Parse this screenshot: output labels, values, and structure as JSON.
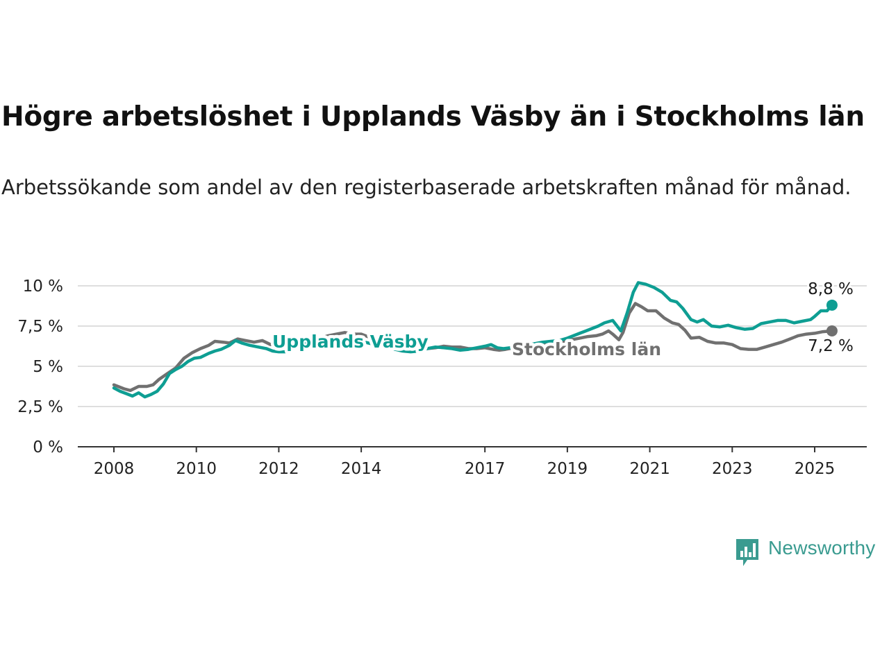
{
  "header": {
    "title": "Högre arbetslöshet i Upplands Väsby än i Stockholms län",
    "subtitle": "Arbetssökande som andel av den registerbaserade arbetskraften månad för månad."
  },
  "brand": {
    "name": "Newsworthy",
    "icon": "newsworthy-logo-icon",
    "color": "#3a9b90"
  },
  "chart_data": {
    "type": "line",
    "xlim": [
      2007.5,
      2026.3
    ],
    "ylim": [
      0,
      10
    ],
    "grid": true,
    "x_ticks": [
      2008,
      2010,
      2012,
      2014,
      2017,
      2019,
      2021,
      2023,
      2025
    ],
    "y_ticks": [
      {
        "value": 0,
        "label": "0 %"
      },
      {
        "value": 2.5,
        "label": "2,5 %"
      },
      {
        "value": 5,
        "label": "5 %"
      },
      {
        "value": 7.5,
        "label": "7,5 %"
      },
      {
        "value": 10,
        "label": "10 %"
      }
    ],
    "series": [
      {
        "name": "Stockholms län",
        "color": "#707070",
        "end_label": "7,2 %",
        "points": [
          [
            2008.0,
            3.85
          ],
          [
            2008.25,
            3.6
          ],
          [
            2008.4,
            3.5
          ],
          [
            2008.6,
            3.75
          ],
          [
            2008.8,
            3.75
          ],
          [
            2008.95,
            3.85
          ],
          [
            2009.1,
            4.2
          ],
          [
            2009.3,
            4.55
          ],
          [
            2009.5,
            4.9
          ],
          [
            2009.7,
            5.5
          ],
          [
            2009.9,
            5.85
          ],
          [
            2010.1,
            6.1
          ],
          [
            2010.3,
            6.3
          ],
          [
            2010.45,
            6.55
          ],
          [
            2010.65,
            6.5
          ],
          [
            2010.8,
            6.45
          ],
          [
            2011.0,
            6.7
          ],
          [
            2011.2,
            6.6
          ],
          [
            2011.4,
            6.5
          ],
          [
            2011.6,
            6.6
          ],
          [
            2011.8,
            6.35
          ],
          [
            2012.0,
            6.4
          ],
          [
            2012.15,
            6.45
          ],
          [
            2012.35,
            6.3
          ],
          [
            2012.6,
            6.45
          ],
          [
            2012.8,
            6.6
          ],
          [
            2013.0,
            6.75
          ],
          [
            2013.2,
            6.9
          ],
          [
            2013.4,
            7.0
          ],
          [
            2013.6,
            7.1
          ],
          [
            2013.8,
            7.0
          ],
          [
            2014.0,
            7.0
          ],
          [
            2014.2,
            6.8
          ],
          [
            2014.4,
            6.6
          ],
          [
            2014.6,
            6.45
          ],
          [
            2014.8,
            6.3
          ],
          [
            2015.0,
            6.2
          ],
          [
            2015.2,
            6.1
          ],
          [
            2015.4,
            6.05
          ],
          [
            2015.6,
            6.1
          ],
          [
            2015.8,
            6.15
          ],
          [
            2016.0,
            6.25
          ],
          [
            2016.2,
            6.2
          ],
          [
            2016.4,
            6.2
          ],
          [
            2016.6,
            6.1
          ],
          [
            2016.8,
            6.1
          ],
          [
            2017.0,
            6.15
          ],
          [
            2017.2,
            6.05
          ],
          [
            2017.35,
            6.0
          ],
          [
            2017.5,
            6.05
          ],
          [
            2017.7,
            6.15
          ],
          [
            2017.9,
            6.2
          ],
          [
            2018.1,
            6.2
          ],
          [
            2018.3,
            6.25
          ],
          [
            2018.5,
            6.35
          ],
          [
            2018.7,
            6.45
          ],
          [
            2018.9,
            6.55
          ],
          [
            2019.1,
            6.65
          ],
          [
            2019.3,
            6.75
          ],
          [
            2019.5,
            6.85
          ],
          [
            2019.7,
            6.9
          ],
          [
            2019.85,
            7.0
          ],
          [
            2020.0,
            7.2
          ],
          [
            2020.1,
            7.0
          ],
          [
            2020.25,
            6.65
          ],
          [
            2020.35,
            7.1
          ],
          [
            2020.5,
            8.3
          ],
          [
            2020.65,
            8.9
          ],
          [
            2020.8,
            8.7
          ],
          [
            2020.95,
            8.45
          ],
          [
            2021.15,
            8.45
          ],
          [
            2021.35,
            8.0
          ],
          [
            2021.55,
            7.7
          ],
          [
            2021.7,
            7.6
          ],
          [
            2021.85,
            7.25
          ],
          [
            2022.0,
            6.75
          ],
          [
            2022.2,
            6.8
          ],
          [
            2022.4,
            6.55
          ],
          [
            2022.6,
            6.45
          ],
          [
            2022.8,
            6.45
          ],
          [
            2023.0,
            6.35
          ],
          [
            2023.2,
            6.1
          ],
          [
            2023.4,
            6.05
          ],
          [
            2023.6,
            6.05
          ],
          [
            2023.8,
            6.2
          ],
          [
            2024.0,
            6.35
          ],
          [
            2024.2,
            6.5
          ],
          [
            2024.4,
            6.7
          ],
          [
            2024.6,
            6.9
          ],
          [
            2024.8,
            7.0
          ],
          [
            2025.0,
            7.05
          ],
          [
            2025.2,
            7.15
          ],
          [
            2025.42,
            7.2
          ]
        ]
      },
      {
        "name": "Upplands Väsby",
        "color": "#0e9e93",
        "end_label": "8,8 %",
        "points": [
          [
            2008.0,
            3.65
          ],
          [
            2008.15,
            3.45
          ],
          [
            2008.3,
            3.3
          ],
          [
            2008.45,
            3.15
          ],
          [
            2008.6,
            3.35
          ],
          [
            2008.75,
            3.1
          ],
          [
            2008.9,
            3.25
          ],
          [
            2009.05,
            3.45
          ],
          [
            2009.2,
            3.9
          ],
          [
            2009.35,
            4.55
          ],
          [
            2009.5,
            4.8
          ],
          [
            2009.65,
            5.0
          ],
          [
            2009.8,
            5.3
          ],
          [
            2009.95,
            5.5
          ],
          [
            2010.1,
            5.55
          ],
          [
            2010.3,
            5.8
          ],
          [
            2010.45,
            5.95
          ],
          [
            2010.6,
            6.05
          ],
          [
            2010.8,
            6.3
          ],
          [
            2010.95,
            6.6
          ],
          [
            2011.1,
            6.45
          ],
          [
            2011.3,
            6.3
          ],
          [
            2011.5,
            6.2
          ],
          [
            2011.7,
            6.1
          ],
          [
            2011.85,
            5.95
          ],
          [
            2012.0,
            5.9
          ],
          [
            2012.15,
            5.9
          ],
          [
            2012.4,
            6.35
          ],
          [
            2012.6,
            6.45
          ],
          [
            2012.8,
            6.5
          ],
          [
            2013.0,
            6.55
          ],
          [
            2013.25,
            6.6
          ],
          [
            2013.5,
            6.65
          ],
          [
            2013.75,
            6.6
          ],
          [
            2014.0,
            6.55
          ],
          [
            2014.25,
            6.4
          ],
          [
            2014.5,
            6.25
          ],
          [
            2014.75,
            6.1
          ],
          [
            2015.0,
            5.95
          ],
          [
            2015.2,
            5.9
          ],
          [
            2015.4,
            5.95
          ],
          [
            2015.6,
            6.1
          ],
          [
            2015.8,
            6.2
          ],
          [
            2016.0,
            6.15
          ],
          [
            2016.2,
            6.1
          ],
          [
            2016.4,
            6.0
          ],
          [
            2016.6,
            6.05
          ],
          [
            2016.8,
            6.15
          ],
          [
            2017.0,
            6.25
          ],
          [
            2017.15,
            6.35
          ],
          [
            2017.3,
            6.15
          ],
          [
            2017.45,
            6.1
          ],
          [
            2017.6,
            6.15
          ],
          [
            2017.8,
            6.25
          ],
          [
            2018.0,
            6.3
          ],
          [
            2018.2,
            6.4
          ],
          [
            2018.4,
            6.5
          ],
          [
            2018.6,
            6.55
          ],
          [
            2018.8,
            6.6
          ],
          [
            2019.0,
            6.75
          ],
          [
            2019.15,
            6.9
          ],
          [
            2019.3,
            7.05
          ],
          [
            2019.45,
            7.2
          ],
          [
            2019.6,
            7.35
          ],
          [
            2019.75,
            7.5
          ],
          [
            2019.9,
            7.7
          ],
          [
            2020.1,
            7.85
          ],
          [
            2020.3,
            7.2
          ],
          [
            2020.45,
            8.3
          ],
          [
            2020.6,
            9.6
          ],
          [
            2020.72,
            10.2
          ],
          [
            2020.9,
            10.1
          ],
          [
            2021.1,
            9.9
          ],
          [
            2021.3,
            9.6
          ],
          [
            2021.5,
            9.1
          ],
          [
            2021.65,
            9.0
          ],
          [
            2021.8,
            8.6
          ],
          [
            2022.0,
            7.9
          ],
          [
            2022.15,
            7.75
          ],
          [
            2022.3,
            7.9
          ],
          [
            2022.5,
            7.5
          ],
          [
            2022.7,
            7.45
          ],
          [
            2022.9,
            7.55
          ],
          [
            2023.1,
            7.4
          ],
          [
            2023.3,
            7.3
          ],
          [
            2023.5,
            7.35
          ],
          [
            2023.7,
            7.65
          ],
          [
            2023.9,
            7.75
          ],
          [
            2024.1,
            7.85
          ],
          [
            2024.3,
            7.85
          ],
          [
            2024.5,
            7.7
          ],
          [
            2024.7,
            7.8
          ],
          [
            2024.9,
            7.9
          ],
          [
            2025.0,
            8.1
          ],
          [
            2025.15,
            8.45
          ],
          [
            2025.3,
            8.45
          ],
          [
            2025.42,
            8.8
          ]
        ]
      }
    ]
  }
}
